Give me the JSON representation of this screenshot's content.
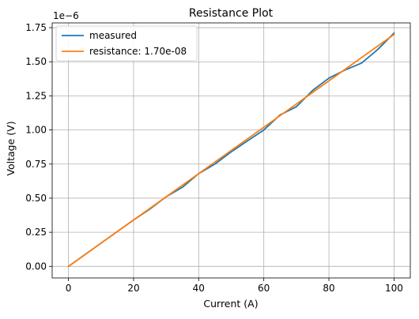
{
  "chart_data": {
    "type": "line",
    "title": "Resistance Plot",
    "xlabel": "Current (A)",
    "ylabel": "Voltage (V)",
    "y_offset_label": "1e−6",
    "xlim": [
      -5,
      105
    ],
    "ylim": [
      -0.085,
      1.785
    ],
    "grid": true,
    "legend_position": "top-left",
    "x_ticks": [
      {
        "value": 0,
        "label": "0"
      },
      {
        "value": 20,
        "label": "20"
      },
      {
        "value": 40,
        "label": "40"
      },
      {
        "value": 60,
        "label": "60"
      },
      {
        "value": 80,
        "label": "80"
      },
      {
        "value": 100,
        "label": "100"
      }
    ],
    "y_ticks": [
      {
        "value": 0.0,
        "label": "0.00"
      },
      {
        "value": 0.25,
        "label": "0.25"
      },
      {
        "value": 0.5,
        "label": "0.50"
      },
      {
        "value": 0.75,
        "label": "0.75"
      },
      {
        "value": 1.0,
        "label": "1.00"
      },
      {
        "value": 1.25,
        "label": "1.25"
      },
      {
        "value": 1.5,
        "label": "1.50"
      },
      {
        "value": 1.75,
        "label": "1.75"
      }
    ],
    "series": [
      {
        "name": "measured",
        "color": "#1f77b4",
        "x": [
          0,
          5,
          10,
          15,
          20,
          25,
          30,
          35,
          40,
          45,
          50,
          55,
          60,
          65,
          70,
          75,
          80,
          85,
          90,
          95,
          100
        ],
        "y": [
          0.0,
          0.085,
          0.17,
          0.255,
          0.34,
          0.42,
          0.51,
          0.58,
          0.68,
          0.75,
          0.84,
          0.92,
          1.0,
          1.11,
          1.17,
          1.29,
          1.38,
          1.44,
          1.49,
          1.59,
          1.71
        ]
      },
      {
        "name": "resistance: 1.70e-08",
        "color": "#ff7f0e",
        "x": [
          0,
          100
        ],
        "y": [
          0.0,
          1.7
        ]
      }
    ]
  }
}
